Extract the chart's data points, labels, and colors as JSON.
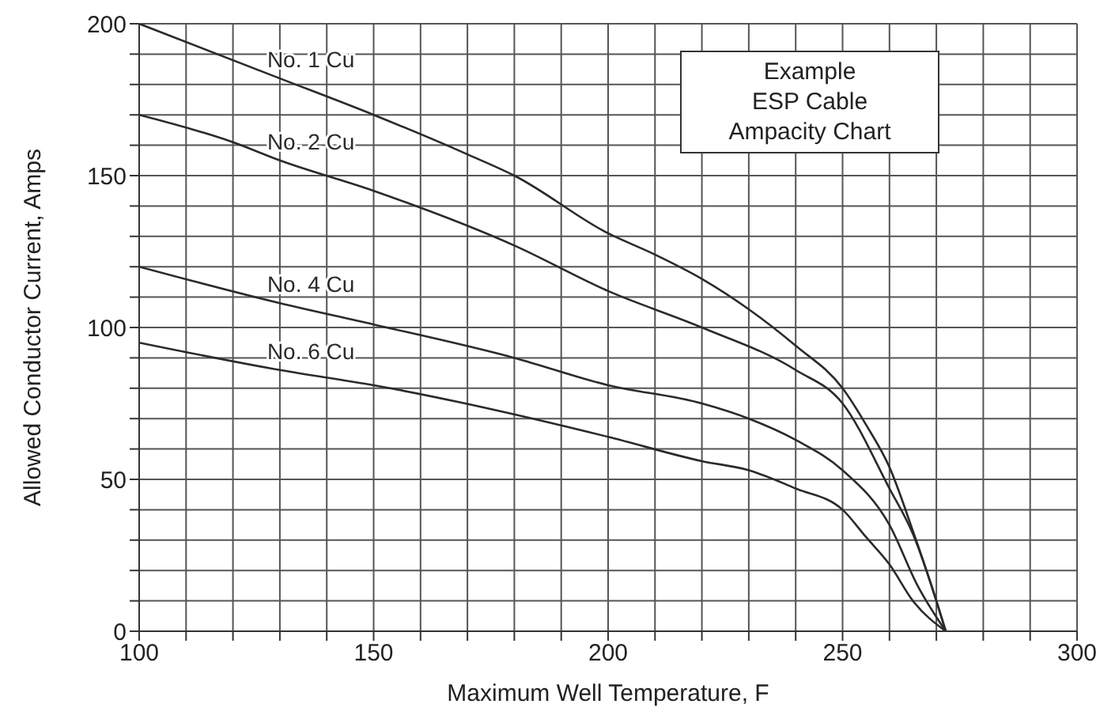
{
  "chart_data": {
    "type": "line",
    "xlabel": "Maximum Well Temperature, F",
    "ylabel": "Allowed Conductor Current, Amps",
    "annotations": [
      "Example\nESP Cable\nAmpacity Chart"
    ],
    "series": [
      {
        "name": "No. 1 Cu",
        "color": "#2a2a2a",
        "x": [
          100,
          130,
          150,
          170,
          180,
          200,
          210,
          220,
          230,
          240,
          250,
          255,
          260,
          265,
          270,
          272
        ],
        "values": [
          200,
          182,
          170,
          157,
          150,
          131,
          124,
          116,
          106,
          94,
          80,
          68,
          54,
          33,
          10,
          0
        ]
      },
      {
        "name": "No. 2 Cu",
        "color": "#2a2a2a",
        "x": [
          100,
          120,
          130,
          150,
          180,
          200,
          220,
          240,
          250,
          260,
          265,
          270,
          272
        ],
        "values": [
          170,
          161,
          155,
          145,
          127,
          112,
          100,
          86,
          75,
          47,
          32,
          10,
          0
        ]
      },
      {
        "name": "No. 4 Cu",
        "color": "#2a2a2a",
        "x": [
          100,
          130,
          150,
          180,
          200,
          220,
          230,
          240,
          250,
          260,
          266,
          272
        ],
        "values": [
          120,
          108,
          101,
          90,
          81,
          75,
          70,
          63,
          53,
          35,
          15,
          0
        ]
      },
      {
        "name": "No. 6 Cu",
        "color": "#2a2a2a",
        "x": [
          100,
          130,
          150,
          200,
          220,
          230,
          240,
          250,
          255,
          260,
          265,
          272
        ],
        "values": [
          95,
          86,
          81,
          64,
          56,
          53,
          47,
          40,
          31,
          22,
          10,
          0
        ]
      }
    ],
    "xlim": [
      100,
      300
    ],
    "xticks": [
      100,
      {
        "value": 110,
        "label": null
      },
      {
        "value": 120,
        "label": null
      },
      {
        "value": 130,
        "label": null
      },
      {
        "value": 140,
        "label": null
      },
      150,
      {
        "value": 160,
        "label": null
      },
      {
        "value": 170,
        "label": null
      },
      {
        "value": 180,
        "label": null
      },
      {
        "value": 190,
        "label": null
      },
      200,
      {
        "value": 210,
        "label": null
      },
      {
        "value": 220,
        "label": null
      },
      {
        "value": 230,
        "label": null
      },
      {
        "value": 240,
        "label": null
      },
      250,
      {
        "value": 260,
        "label": null
      },
      {
        "value": 270,
        "label": null
      },
      {
        "value": 280,
        "label": null
      },
      {
        "value": 290,
        "label": null
      },
      300
    ],
    "ylim": [
      0,
      200
    ],
    "yticks": [
      0,
      {
        "value": 10,
        "label": null
      },
      {
        "value": 20,
        "label": null
      },
      {
        "value": 30,
        "label": null
      },
      {
        "value": 40,
        "label": null
      },
      50,
      {
        "value": 60,
        "label": null
      },
      {
        "value": 70,
        "label": null
      },
      {
        "value": 80,
        "label": null
      },
      {
        "value": 90,
        "label": null
      },
      100,
      {
        "value": 110,
        "label": null
      },
      {
        "value": 120,
        "label": null
      },
      {
        "value": 130,
        "label": null
      },
      {
        "value": 140,
        "label": null
      },
      150,
      {
        "value": 160,
        "label": null
      },
      {
        "value": 170,
        "label": null
      },
      {
        "value": 180,
        "label": null
      },
      {
        "value": 190,
        "label": null
      },
      200
    ],
    "grid": true,
    "marker": "none",
    "line_style": "solid"
  }
}
